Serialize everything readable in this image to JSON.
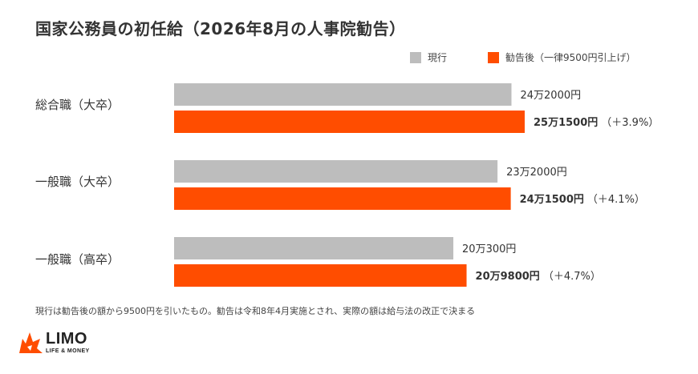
{
  "title": "国家公務員の初任給（2026年8月の人事院勧告）",
  "legend": [
    {
      "label": "現行",
      "color": "#bdbdbd"
    },
    {
      "label": "勧告後（一律9500円引上げ）",
      "color": "#ff4d00"
    }
  ],
  "chart_data": {
    "type": "bar",
    "orientation": "horizontal",
    "categories": [
      "総合職（大卒）",
      "一般職（大卒）",
      "一般職（高卒）"
    ],
    "series": [
      {
        "name": "現行",
        "color": "#bdbdbd",
        "values": [
          242000,
          232000,
          200300
        ],
        "labels": [
          "24万2000円",
          "23万2000円",
          "20万300円"
        ]
      },
      {
        "name": "勧告後（一律9500円引上げ）",
        "color": "#ff4d00",
        "values": [
          251500,
          241500,
          209800
        ],
        "labels": [
          "25万1500円",
          "24万1500円",
          "20万9800円"
        ],
        "changes": [
          "（＋3.9%）",
          "（＋4.1%）",
          "（＋4.7%）"
        ]
      }
    ]
  },
  "note": "現行は勧告後の額から9500円を引いたもの。勧告は令和8年4月実施とされ、実際の額は給与法の改正で決まる",
  "logo": {
    "name": "LIMO",
    "tagline": "LIFE & MONEY"
  }
}
